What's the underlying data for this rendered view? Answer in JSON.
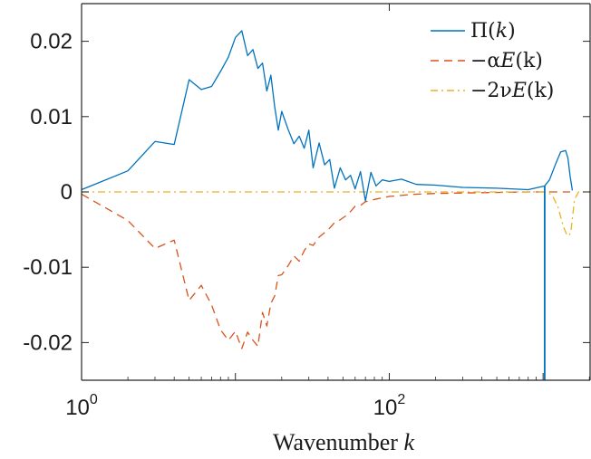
{
  "chart_data": {
    "type": "line",
    "title": "",
    "xlabel": {
      "text": "Wavenumber ",
      "var": "k"
    },
    "ylabel": "",
    "xscale": "log",
    "xlim": [
      1,
      2048
    ],
    "ylim": [
      -0.025,
      0.025
    ],
    "grid": false,
    "legend_position": "top-right",
    "x_ticks": [
      {
        "value": 1,
        "base": "10",
        "exp": "0"
      },
      {
        "value": 100,
        "base": "10",
        "exp": "2"
      }
    ],
    "y_ticks": [
      {
        "value": 0.02,
        "label": "0.02"
      },
      {
        "value": 0.01,
        "label": "0.01"
      },
      {
        "value": 0,
        "label": "0"
      },
      {
        "value": -0.01,
        "label": "-0.01"
      },
      {
        "value": -0.02,
        "label": "-0.02"
      }
    ],
    "series": [
      {
        "name": "Π(k)",
        "legend": {
          "main": "Π(",
          "var": "k",
          "tail": ")"
        },
        "color": "#0072bd",
        "style": "solid",
        "x": [
          1,
          2,
          3,
          4,
          5,
          6,
          7,
          8,
          9,
          10,
          11,
          12,
          13,
          14,
          15,
          16,
          17,
          18,
          19,
          20,
          22,
          24,
          26,
          28,
          30,
          32,
          35,
          38,
          41,
          44,
          48,
          52,
          56,
          60,
          65,
          70,
          76,
          82,
          90,
          100,
          120,
          150,
          200,
          300,
          500,
          800,
          1024,
          1100,
          1200,
          1300,
          1400,
          1450,
          1500,
          1550
        ],
        "y": [
          0.0003,
          0.0028,
          0.0067,
          0.0063,
          0.0149,
          0.0136,
          0.014,
          0.016,
          0.0179,
          0.0205,
          0.0214,
          0.0181,
          0.0189,
          0.0164,
          0.0171,
          0.0134,
          0.0155,
          0.0113,
          0.0082,
          0.0107,
          0.0083,
          0.0064,
          0.0074,
          0.0058,
          0.0082,
          0.0032,
          0.0065,
          0.0036,
          0.0043,
          0.0005,
          0.0032,
          0.0016,
          0.0022,
          0.0004,
          0.0027,
          -0.0012,
          0.0026,
          0.0008,
          0.0016,
          0.0014,
          0.0017,
          0.001,
          0.0009,
          0.0006,
          0.0005,
          0.0003,
          0.0008,
          0.0016,
          0.0036,
          0.0053,
          0.0055,
          0.0045,
          0.002,
          0.0002
        ]
      },
      {
        "name": "-αE(k)",
        "legend": {
          "main": "−α",
          "var": "E",
          "tail": "(k)"
        },
        "color": "#d95319",
        "style": "dashed",
        "x": [
          1,
          2,
          3,
          4,
          5,
          6,
          7,
          8,
          9,
          10,
          11,
          12,
          13,
          14,
          15,
          16,
          17,
          18,
          19,
          20,
          22,
          24,
          26,
          28,
          30,
          32,
          35,
          38,
          41,
          44,
          48,
          52,
          56,
          60,
          65,
          70,
          80,
          100,
          150,
          200,
          400,
          800,
          1500
        ],
        "y": [
          -0.0003,
          -0.0038,
          -0.0075,
          -0.0064,
          -0.0144,
          -0.0124,
          -0.015,
          -0.0183,
          -0.0197,
          -0.0185,
          -0.0208,
          -0.0186,
          -0.0197,
          -0.0205,
          -0.016,
          -0.0178,
          -0.0148,
          -0.0138,
          -0.0111,
          -0.011,
          -0.0098,
          -0.0085,
          -0.0092,
          -0.0078,
          -0.0069,
          -0.0071,
          -0.006,
          -0.0054,
          -0.0048,
          -0.0041,
          -0.0037,
          -0.0032,
          -0.0026,
          -0.0019,
          -0.0018,
          -0.0013,
          -0.001,
          -0.0006,
          -0.0003,
          -0.0002,
          -0.0001,
          0,
          0
        ]
      },
      {
        "name": "-2νE(k)",
        "legend": {
          "main": "−2ν",
          "var": "E",
          "tail": "(k)"
        },
        "color": "#edb120",
        "style": "dashdot",
        "x": [
          1,
          10,
          100,
          500,
          1000,
          1080,
          1150,
          1250,
          1350,
          1420,
          1480,
          1520,
          1560,
          1600,
          1700,
          2048
        ],
        "y": [
          0,
          0,
          0,
          0,
          0,
          -0.0001,
          -0.0005,
          -0.002,
          -0.0045,
          -0.0056,
          -0.0058,
          -0.005,
          -0.003,
          -0.001,
          0,
          0
        ]
      }
    ],
    "annotations": {
      "pi_spike": {
        "x": 1024,
        "y_min": -0.025,
        "y_max": 0.0008
      }
    }
  }
}
